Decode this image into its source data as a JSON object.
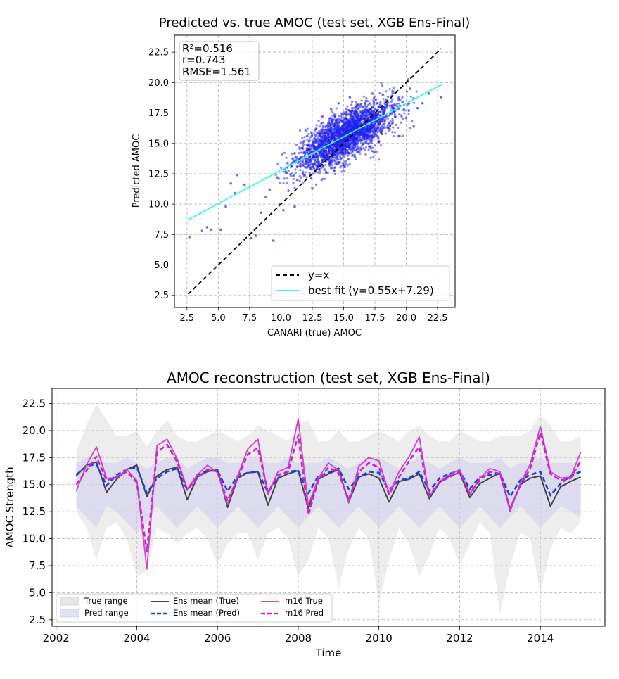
{
  "chart_data": [
    {
      "type": "scatter",
      "title": "Predicted vs. true AMOC (test set, XGB Ens-Final)",
      "xlabel": "CANARI (true) AMOC",
      "ylabel": "Predicted AMOC",
      "xlim": [
        1.5,
        23.9
      ],
      "ylim": [
        1.5,
        23.9
      ],
      "xticks": [
        "2.5",
        "5.0",
        "7.5",
        "10.0",
        "12.5",
        "15.0",
        "17.5",
        "20.0",
        "22.5"
      ],
      "yticks": [
        "2.5",
        "5.0",
        "7.5",
        "10.0",
        "12.5",
        "15.0",
        "17.5",
        "20.0",
        "22.5"
      ],
      "grid": true,
      "stats": [
        "R²=0.516",
        "r=0.743",
        "RMSE=1.561"
      ],
      "legend_position": "lower-right",
      "series": [
        {
          "name": "y=x",
          "type": "line",
          "style": "dashed",
          "color": "#000000",
          "x": [
            2.6,
            22.8
          ],
          "y": [
            2.6,
            22.8
          ]
        },
        {
          "name": "best fit (y=0.55x+7.29)",
          "type": "line",
          "color": "#3ff2f2",
          "x": [
            2.6,
            22.8
          ],
          "y": [
            8.72,
            19.83
          ]
        }
      ],
      "scatter_points": [
        [
          2.7,
          7.3
        ],
        [
          3.7,
          7.8
        ],
        [
          4.1,
          8.1
        ],
        [
          4.4,
          7.9
        ],
        [
          5.2,
          7.9
        ],
        [
          5.6,
          9.8
        ],
        [
          6.0,
          11.7
        ],
        [
          6.3,
          10.9
        ],
        [
          6.5,
          12.4
        ],
        [
          7.1,
          11.6
        ],
        [
          7.6,
          7.2
        ],
        [
          8.0,
          7.4
        ],
        [
          8.4,
          9.3
        ],
        [
          8.8,
          10.6
        ],
        [
          9.1,
          11.2
        ],
        [
          9.4,
          7.0
        ],
        [
          9.7,
          12.2
        ],
        [
          9.9,
          10.0
        ],
        [
          10.2,
          9.5
        ],
        [
          10.4,
          12.6
        ],
        [
          10.6,
          11.1
        ],
        [
          10.9,
          13.4
        ],
        [
          11.1,
          9.8
        ],
        [
          11.3,
          12.0
        ],
        [
          11.5,
          13.7
        ],
        [
          11.7,
          14.6
        ],
        [
          11.9,
          12.4
        ],
        [
          12.1,
          15.6
        ],
        [
          12.3,
          13.9
        ],
        [
          12.5,
          11.3
        ],
        [
          12.6,
          14.8
        ],
        [
          12.8,
          16.2
        ],
        [
          13.0,
          13.1
        ],
        [
          13.1,
          15.3
        ],
        [
          13.3,
          17.2
        ],
        [
          13.4,
          14.1
        ],
        [
          13.6,
          12.6
        ],
        [
          13.7,
          16.1
        ],
        [
          13.9,
          14.9
        ],
        [
          14.0,
          17.8
        ],
        [
          14.1,
          13.6
        ],
        [
          14.3,
          15.7
        ],
        [
          14.4,
          16.9
        ],
        [
          14.5,
          14.4
        ],
        [
          14.6,
          18.3
        ],
        [
          14.8,
          15.2
        ],
        [
          14.9,
          16.4
        ],
        [
          15.0,
          13.2
        ],
        [
          15.1,
          17.4
        ],
        [
          15.2,
          15.9
        ],
        [
          15.3,
          14.7
        ],
        [
          15.5,
          18.8
        ],
        [
          15.6,
          16.2
        ],
        [
          15.7,
          17.0
        ],
        [
          15.8,
          15.4
        ],
        [
          15.9,
          13.9
        ],
        [
          16.0,
          16.8
        ],
        [
          16.1,
          18.1
        ],
        [
          16.2,
          15.8
        ],
        [
          16.4,
          17.3
        ],
        [
          16.5,
          14.9
        ],
        [
          16.6,
          16.6
        ],
        [
          16.8,
          18.5
        ],
        [
          16.9,
          15.5
        ],
        [
          17.0,
          17.7
        ],
        [
          17.2,
          16.3
        ],
        [
          17.3,
          19.1
        ],
        [
          17.5,
          14.3
        ],
        [
          17.6,
          17.1
        ],
        [
          17.8,
          18.0
        ],
        [
          18.0,
          15.9
        ],
        [
          18.2,
          17.4
        ],
        [
          18.4,
          18.6
        ],
        [
          18.6,
          16.7
        ],
        [
          18.9,
          19.3
        ],
        [
          19.1,
          17.2
        ],
        [
          19.4,
          15.6
        ],
        [
          19.7,
          18.4
        ],
        [
          20.0,
          17.1
        ],
        [
          20.3,
          19.5
        ],
        [
          20.6,
          16.4
        ],
        [
          20.9,
          17.9
        ],
        [
          21.3,
          18.3
        ],
        [
          21.8,
          19.1
        ],
        [
          22.8,
          18.8
        ]
      ]
    },
    {
      "type": "line",
      "title": "AMOC reconstruction (test set, XGB Ens-Final)",
      "xlabel": "Time",
      "ylabel": "AMOC Strength",
      "xlim": [
        2001.9,
        2015.6
      ],
      "ylim": [
        1.9,
        23.9
      ],
      "xticks": [
        "2002",
        "2004",
        "2006",
        "2008",
        "2010",
        "2012",
        "2014"
      ],
      "yticks": [
        "2.5",
        "5.0",
        "7.5",
        "10.0",
        "12.5",
        "15.0",
        "17.5",
        "20.0",
        "22.5"
      ],
      "grid": true,
      "legend_position": "lower-left",
      "legend": [
        "True range",
        "Pred range",
        "Ens mean (True)",
        "Ens mean (Pred)",
        "m16 True",
        "m16 Pred"
      ],
      "x": [
        2002.5,
        2002.75,
        2003.0,
        2003.25,
        2003.5,
        2003.75,
        2004.0,
        2004.25,
        2004.5,
        2004.75,
        2005.0,
        2005.25,
        2005.5,
        2005.75,
        2006.0,
        2006.25,
        2006.5,
        2006.75,
        2007.0,
        2007.25,
        2007.5,
        2007.75,
        2008.0,
        2008.25,
        2008.5,
        2008.75,
        2009.0,
        2009.25,
        2009.5,
        2009.75,
        2010.0,
        2010.25,
        2010.5,
        2010.75,
        2011.0,
        2011.25,
        2011.5,
        2011.75,
        2012.0,
        2012.25,
        2012.5,
        2012.75,
        2013.0,
        2013.25,
        2013.5,
        2013.75,
        2014.0,
        2014.25,
        2014.5,
        2014.75,
        2015.0
      ],
      "series": [
        {
          "name": "True range (upper)",
          "color": "#eeeeee",
          "values": [
            18.0,
            20.5,
            22.5,
            21.0,
            19.5,
            19.5,
            20.0,
            18.5,
            20.0,
            21.0,
            19.5,
            19.0,
            19.0,
            19.5,
            20.0,
            19.5,
            19.0,
            19.5,
            20.5,
            20.0,
            19.5,
            19.0,
            20.5,
            21.0,
            19.0,
            19.0,
            20.0,
            19.0,
            19.0,
            19.5,
            20.0,
            19.5,
            19.0,
            20.0,
            20.5,
            19.5,
            19.0,
            19.0,
            20.0,
            19.5,
            19.0,
            19.0,
            19.5,
            19.5,
            19.5,
            20.0,
            21.5,
            20.5,
            19.0,
            19.0,
            19.5
          ]
        },
        {
          "name": "True range (lower)",
          "color": "#eeeeee",
          "values": [
            12.5,
            11.0,
            8.0,
            11.0,
            11.5,
            10.0,
            6.5,
            7.0,
            11.0,
            10.5,
            9.5,
            10.5,
            11.0,
            10.0,
            7.5,
            9.5,
            10.5,
            10.5,
            8.0,
            10.5,
            11.0,
            10.0,
            6.5,
            8.0,
            11.0,
            10.0,
            5.5,
            9.0,
            11.0,
            10.0,
            4.0,
            8.0,
            11.0,
            9.5,
            6.5,
            8.5,
            11.0,
            10.0,
            7.5,
            9.5,
            11.5,
            10.5,
            3.0,
            7.5,
            10.5,
            10.0,
            5.0,
            9.0,
            11.0,
            10.5,
            11.5
          ]
        },
        {
          "name": "Pred range (upper)",
          "color": "#e6e6f5",
          "values": [
            17.0,
            17.5,
            17.5,
            17.0,
            17.0,
            17.5,
            17.0,
            16.5,
            17.0,
            17.5,
            17.5,
            16.5,
            17.0,
            17.5,
            17.5,
            17.0,
            17.0,
            17.5,
            17.5,
            17.0,
            17.0,
            17.5,
            17.0,
            17.0,
            17.0,
            17.5,
            17.0,
            16.5,
            17.0,
            17.5,
            17.5,
            17.0,
            16.5,
            17.0,
            17.5,
            17.0,
            16.5,
            17.0,
            17.5,
            17.0,
            17.0,
            17.0,
            17.5,
            16.5,
            17.0,
            17.0,
            17.5,
            17.0,
            17.0,
            17.0,
            17.0
          ]
        },
        {
          "name": "Pred range (lower)",
          "color": "#e6e6f5",
          "values": [
            13.0,
            12.0,
            11.0,
            13.0,
            12.5,
            11.5,
            10.5,
            11.5,
            13.0,
            12.0,
            11.0,
            12.0,
            13.0,
            12.0,
            11.0,
            12.0,
            13.0,
            12.0,
            11.0,
            12.0,
            13.0,
            12.0,
            11.0,
            12.0,
            13.0,
            12.0,
            11.0,
            12.0,
            13.0,
            12.0,
            11.0,
            12.0,
            13.0,
            12.0,
            11.0,
            12.0,
            13.0,
            12.0,
            11.0,
            12.0,
            13.0,
            12.0,
            11.0,
            12.0,
            13.0,
            12.0,
            11.0,
            12.0,
            13.0,
            12.5,
            12.0
          ]
        },
        {
          "name": "Ens mean (True)",
          "color": "#444444",
          "style": "solid",
          "values": [
            15.8,
            16.8,
            17.1,
            14.3,
            15.5,
            16.4,
            16.8,
            13.9,
            15.8,
            16.4,
            16.6,
            13.6,
            15.7,
            16.2,
            16.4,
            12.9,
            15.6,
            16.1,
            16.2,
            13.1,
            15.6,
            16.0,
            16.3,
            12.8,
            15.5,
            16.0,
            16.4,
            13.4,
            15.7,
            16.0,
            15.6,
            13.4,
            15.3,
            15.5,
            16.0,
            13.7,
            15.2,
            15.8,
            16.1,
            13.8,
            15.1,
            15.6,
            16.1,
            12.7,
            15.0,
            15.6,
            15.8,
            13.0,
            14.8,
            15.3,
            15.7
          ]
        },
        {
          "name": "Ens mean (Pred)",
          "color": "#1a3ee0",
          "style": "dashed",
          "values": [
            15.9,
            16.7,
            16.9,
            14.9,
            15.9,
            16.4,
            16.6,
            14.2,
            15.6,
            16.2,
            16.5,
            14.5,
            15.9,
            16.3,
            16.3,
            14.4,
            15.8,
            16.1,
            16.2,
            14.3,
            15.6,
            16.2,
            16.3,
            14.2,
            15.8,
            16.1,
            16.5,
            14.6,
            15.7,
            16.2,
            16.1,
            14.5,
            15.4,
            15.6,
            16.2,
            14.4,
            15.6,
            16.0,
            16.3,
            14.6,
            15.7,
            15.9,
            16.0,
            13.9,
            15.4,
            15.9,
            16.2,
            14.0,
            15.1,
            15.8,
            16.2
          ]
        },
        {
          "name": "m16 True",
          "color": "#cc44cc",
          "style": "solid",
          "values": [
            14.4,
            16.8,
            18.5,
            15.6,
            15.6,
            16.4,
            15.4,
            7.2,
            18.6,
            19.2,
            17.4,
            14.6,
            15.9,
            16.8,
            16.1,
            13.2,
            15.8,
            18.3,
            19.2,
            14.1,
            16.2,
            16.6,
            21.1,
            13.1,
            15.6,
            17.0,
            16.3,
            13.3,
            16.7,
            17.5,
            17.2,
            14.2,
            16.2,
            17.6,
            19.4,
            13.9,
            15.3,
            15.9,
            16.4,
            14.1,
            15.6,
            16.5,
            16.2,
            12.5,
            15.1,
            16.9,
            20.4,
            16.2,
            15.6,
            15.7,
            18.0
          ]
        },
        {
          "name": "m16 Pred",
          "color": "#cc22cc",
          "style": "dashed",
          "values": [
            15.0,
            16.3,
            17.6,
            15.4,
            15.7,
            16.2,
            15.2,
            8.8,
            18.0,
            18.7,
            17.1,
            14.5,
            15.6,
            16.4,
            16.2,
            13.5,
            15.6,
            17.8,
            18.4,
            14.3,
            15.9,
            16.2,
            19.6,
            12.2,
            15.4,
            16.6,
            16.1,
            13.6,
            16.2,
            17.0,
            16.6,
            14.1,
            15.7,
            17.2,
            18.5,
            14.0,
            15.2,
            15.7,
            16.2,
            14.2,
            15.4,
            16.2,
            16.0,
            12.8,
            14.9,
            16.5,
            19.8,
            16.0,
            15.4,
            15.6,
            17.2
          ]
        }
      ]
    }
  ]
}
